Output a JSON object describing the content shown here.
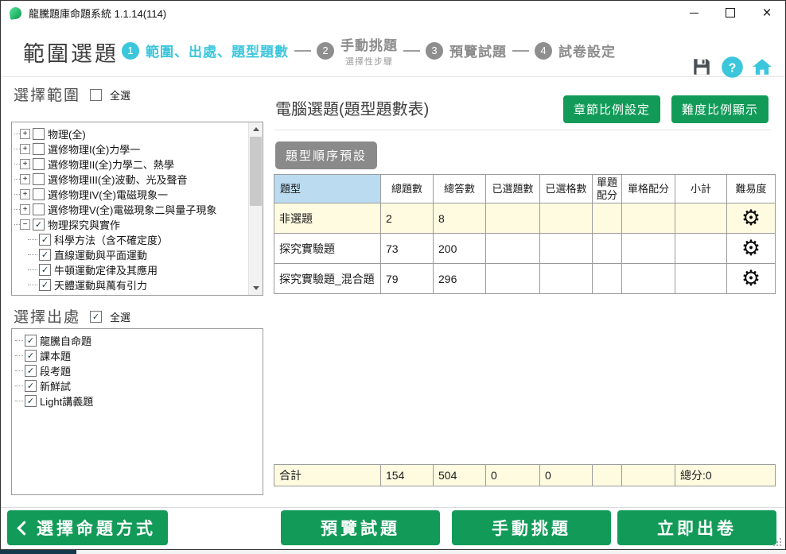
{
  "window": {
    "title": "龍騰題庫命題系統 1.1.14(114)"
  },
  "header": {
    "page_title": "範圍選題",
    "steps": [
      {
        "num": "1",
        "label": "範圍、出處、題型題數",
        "sub": "",
        "active": true
      },
      {
        "num": "2",
        "label": "手動挑題",
        "sub": "選擇性步驟",
        "active": false
      },
      {
        "num": "3",
        "label": "預覽試題",
        "sub": "",
        "active": false
      },
      {
        "num": "4",
        "label": "試卷設定",
        "sub": "",
        "active": false
      }
    ]
  },
  "scope": {
    "title": "選擇範圍",
    "select_all_label": "全選",
    "select_all_checked": false,
    "tree": [
      {
        "label": "物理(全)",
        "checked": false,
        "expander": "+",
        "level": 0
      },
      {
        "label": "選修物理I(全)力學一",
        "checked": false,
        "expander": "+",
        "level": 0
      },
      {
        "label": "選修物理II(全)力學二、熱學",
        "checked": false,
        "expander": "+",
        "level": 0
      },
      {
        "label": "選修物理III(全)波動、光及聲音",
        "checked": false,
        "expander": "+",
        "level": 0
      },
      {
        "label": "選修物理IV(全)電磁現象一",
        "checked": false,
        "expander": "+",
        "level": 0
      },
      {
        "label": "選修物理V(全)電磁現象二與量子現象",
        "checked": false,
        "expander": "+",
        "level": 0
      },
      {
        "label": "物理探究與實作",
        "checked": true,
        "expander": "−",
        "level": 0
      },
      {
        "label": "科學方法（含不確定度）",
        "checked": true,
        "expander": null,
        "level": 1
      },
      {
        "label": "直線運動與平面運動",
        "checked": true,
        "expander": null,
        "level": 1
      },
      {
        "label": "牛頓運動定律及其應用",
        "checked": true,
        "expander": null,
        "level": 1
      },
      {
        "label": "天體運動與萬有引力",
        "checked": true,
        "expander": null,
        "level": 1
      }
    ]
  },
  "source": {
    "title": "選擇出處",
    "select_all_label": "全選",
    "select_all_checked": true,
    "items": [
      "龍騰自命題",
      "課本題",
      "段考題",
      "新鮮試",
      "Light講義題"
    ]
  },
  "main": {
    "title": "電腦選題(題型題數表)",
    "chapter_ratio_button": "章節比例設定",
    "difficulty_ratio_button": "難度比例顯示",
    "order_chip": "題型順序預設"
  },
  "table": {
    "headers": [
      "題型",
      "總題數",
      "總答數",
      "已選題數",
      "已選格數",
      "單題配分",
      "單格配分",
      "小計",
      "難易度"
    ],
    "rows": [
      {
        "label": "非選題",
        "total": "2",
        "answers": "8",
        "selected": "",
        "grids": "",
        "per_q": "",
        "per_g": "",
        "subtotal": "",
        "highlight": true
      },
      {
        "label": "探究實驗題",
        "total": "73",
        "answers": "200",
        "selected": "",
        "grids": "",
        "per_q": "",
        "per_g": "",
        "subtotal": "",
        "highlight": false
      },
      {
        "label": "探究實驗題_混合題",
        "total": "79",
        "answers": "296",
        "selected": "",
        "grids": "",
        "per_q": "",
        "per_g": "",
        "subtotal": "",
        "highlight": false
      }
    ],
    "totals": {
      "label": "合計",
      "total": "154",
      "answers": "504",
      "selected": "0",
      "grids": "0",
      "per_q": "",
      "per_g": "",
      "subtotal": "總分:0"
    }
  },
  "footer": {
    "back": "選擇命題方式",
    "preview": "預覽試題",
    "manual": "手動挑題",
    "generate": "立即出卷"
  },
  "icons": {
    "gear": "⚙",
    "check": "✓",
    "close": "×"
  },
  "colors": {
    "accent_green": "#129B58",
    "accent_cyan": "#3BC6DC",
    "step_gray": "#8E8E8E",
    "row_highlight": "#FEFBE0",
    "header_cell_blue": "#BBDBF1",
    "chip_gray": "#8A8A8A"
  }
}
